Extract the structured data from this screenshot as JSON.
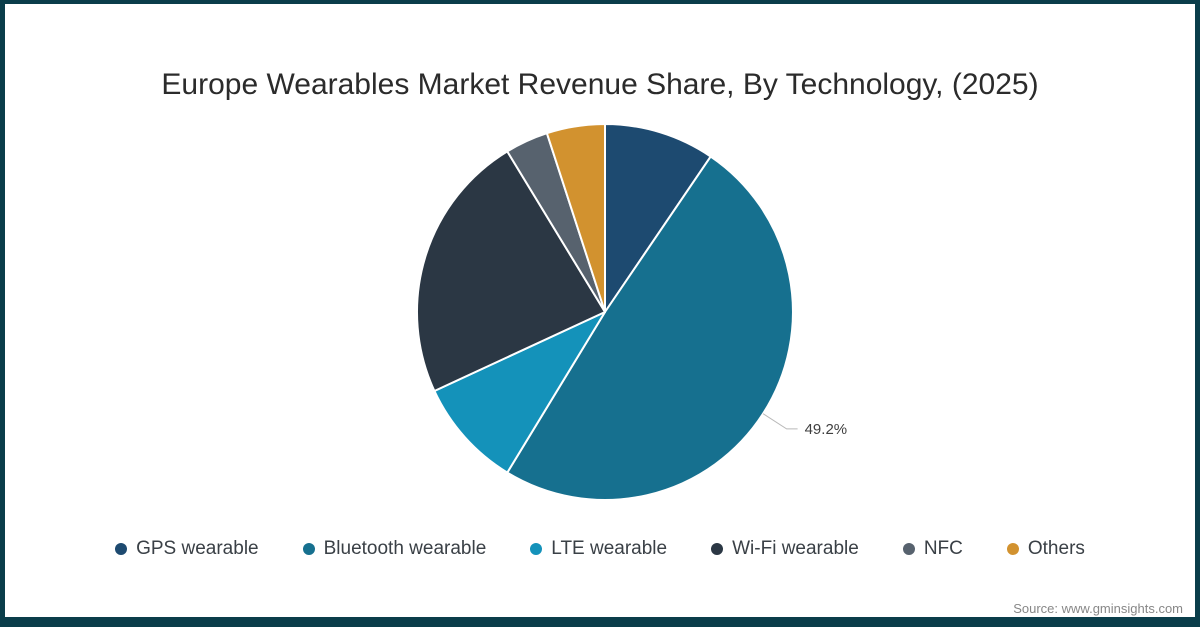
{
  "title": "Europe Wearables Market Revenue Share, By Technology, (2025)",
  "source": "Source: www.gminsights.com",
  "frame": {
    "border_color": "#0a3d4a"
  },
  "chart_data": {
    "type": "pie",
    "title": "Europe Wearables Market Revenue Share, By Technology, (2025)",
    "labels": [
      "GPS wearable",
      "Bluetooth wearable",
      "LTE wearable",
      "Wi-Fi wearable",
      "NFC",
      "Others"
    ],
    "values": [
      9.5,
      49.2,
      9.4,
      23.2,
      3.7,
      5.0
    ],
    "colors": [
      "#1d4a70",
      "#16708f",
      "#1492ba",
      "#2b3744",
      "#57626e",
      "#d2922f"
    ],
    "start_angle_deg": 0,
    "direction": "clockwise",
    "slice_border_color": "#ffffff",
    "callout": {
      "slice_index": 1,
      "text": "49.2%"
    },
    "legend_position": "bottom"
  }
}
